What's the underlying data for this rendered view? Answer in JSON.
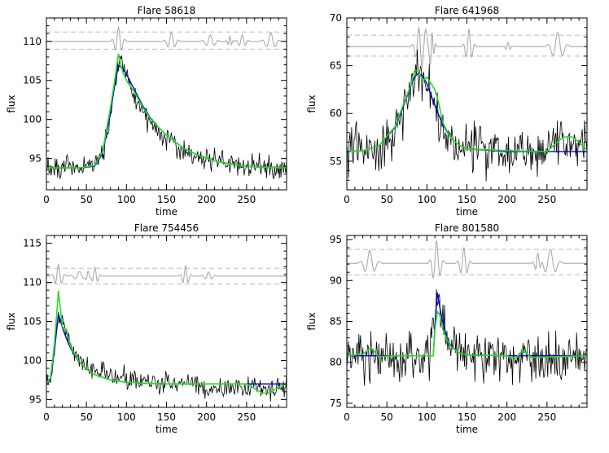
{
  "colors": {
    "data": "#000000",
    "model": "#0000cc",
    "fit": "#22dd22",
    "residual": "#aaaaaa",
    "band": "#bbbbbb"
  },
  "chart_data": [
    {
      "type": "line",
      "title": "Flare 58618",
      "xlabel": "time",
      "ylabel": "flux",
      "xlim": [
        0,
        300
      ],
      "ylim": [
        91,
        113
      ],
      "xticks": [
        0,
        50,
        100,
        150,
        200,
        250
      ],
      "yticks": [
        95,
        100,
        105,
        110
      ],
      "baseline": 93.8,
      "peak": 107.0,
      "peak_time": 90,
      "rise": 14,
      "decay": 40,
      "noise": 0.9,
      "residual_level": 110.0,
      "residual_band": [
        109.0,
        111.2
      ],
      "series": [
        {
          "role": "data",
          "x": [
            0,
            10,
            20,
            30,
            40,
            50,
            60,
            70,
            80,
            85,
            90,
            95,
            100,
            110,
            120,
            130,
            140,
            150,
            170,
            190,
            210,
            230,
            250,
            270,
            290,
            300
          ],
          "y": [
            93.8,
            93.9,
            94.0,
            93.7,
            93.8,
            94.0,
            94.2,
            95.5,
            100.5,
            104.0,
            106.8,
            107.2,
            105.5,
            103.0,
            101.0,
            99.5,
            98.5,
            97.5,
            96.0,
            95.2,
            94.7,
            94.2,
            94.0,
            93.9,
            93.8,
            93.8
          ]
        },
        {
          "role": "model",
          "x": [
            0,
            40,
            60,
            70,
            80,
            85,
            90,
            95,
            100,
            110,
            120,
            130,
            140,
            150,
            170,
            190,
            210,
            230,
            250,
            270,
            300
          ],
          "y": [
            93.8,
            93.8,
            94.0,
            95.6,
            100.8,
            104.2,
            106.9,
            106.6,
            105.8,
            103.8,
            101.8,
            100.2,
            99.0,
            98.0,
            96.4,
            95.4,
            94.7,
            94.3,
            94.0,
            93.9,
            93.8
          ]
        },
        {
          "role": "fit",
          "x": [
            0,
            40,
            60,
            70,
            80,
            85,
            90,
            95,
            100,
            110,
            120,
            130,
            140,
            150,
            170,
            190,
            210,
            230,
            250,
            270,
            300
          ],
          "y": [
            93.8,
            93.8,
            94.1,
            95.8,
            101.5,
            104.8,
            108.4,
            106.2,
            105.0,
            103.5,
            101.6,
            100.1,
            99.0,
            98.0,
            96.4,
            95.4,
            94.7,
            94.3,
            94.0,
            93.9,
            93.8
          ]
        }
      ]
    },
    {
      "type": "line",
      "title": "Flare 641968",
      "xlabel": "time",
      "ylabel": "flux",
      "xlim": [
        0,
        300
      ],
      "ylim": [
        52,
        70
      ],
      "xticks": [
        0,
        50,
        100,
        150,
        200,
        250
      ],
      "yticks": [
        55,
        60,
        65,
        70
      ],
      "baseline": 56.0,
      "peak": 64.2,
      "peak_time": 90,
      "rise": 18,
      "decay": 14,
      "noise": 1.5,
      "residual_level": 67.0,
      "residual_band": [
        66.0,
        68.2
      ],
      "series": [
        {
          "role": "data",
          "x": [
            0,
            20,
            40,
            60,
            70,
            80,
            85,
            90,
            95,
            100,
            110,
            120,
            130,
            150,
            180,
            210,
            240,
            260,
            280,
            300
          ],
          "y": [
            56.0,
            56.2,
            56.5,
            58.0,
            60.0,
            62.5,
            63.8,
            64.4,
            64.0,
            63.0,
            60.5,
            58.5,
            57.0,
            56.3,
            56.1,
            56.0,
            56.0,
            56.8,
            57.2,
            56.5
          ]
        },
        {
          "role": "model",
          "x": [
            0,
            20,
            40,
            60,
            70,
            80,
            85,
            90,
            95,
            100,
            110,
            120,
            130,
            140,
            150,
            200,
            250,
            300
          ],
          "y": [
            56.0,
            56.1,
            56.6,
            58.5,
            60.6,
            62.9,
            63.9,
            64.2,
            63.9,
            63.1,
            60.8,
            58.8,
            57.4,
            56.7,
            56.3,
            56.0,
            56.0,
            56.0
          ]
        },
        {
          "role": "fit",
          "x": [
            0,
            20,
            40,
            60,
            70,
            80,
            85,
            90,
            95,
            100,
            110,
            115,
            120,
            130,
            140,
            150,
            200,
            250,
            260,
            270,
            280,
            290,
            300
          ],
          "y": [
            56.0,
            56.1,
            56.6,
            58.6,
            60.8,
            63.0,
            64.6,
            64.3,
            63.4,
            63.8,
            62.5,
            61.0,
            59.0,
            57.4,
            56.7,
            56.3,
            56.1,
            56.0,
            56.8,
            57.5,
            57.6,
            57.0,
            56.2
          ]
        }
      ]
    },
    {
      "type": "line",
      "title": "Flare 754456",
      "xlabel": "time",
      "ylabel": "flux",
      "xlim": [
        0,
        300
      ],
      "ylim": [
        94,
        116
      ],
      "xticks": [
        0,
        50,
        100,
        150,
        200,
        250
      ],
      "yticks": [
        95,
        100,
        105,
        110,
        115
      ],
      "baseline": 97.0,
      "peak": 106.0,
      "peak_time": 15,
      "rise": 5,
      "decay": 15,
      "noise": 0.8,
      "residual_level": 110.8,
      "residual_band": [
        109.8,
        111.8
      ],
      "series": [
        {
          "role": "data",
          "x": [
            0,
            5,
            10,
            15,
            20,
            25,
            30,
            40,
            50,
            60,
            80,
            100,
            120,
            150,
            180,
            200,
            220,
            240,
            260,
            270,
            280,
            290,
            300
          ],
          "y": [
            97.0,
            97.5,
            101.0,
            105.8,
            105.0,
            103.5,
            102.0,
            100.5,
            99.5,
            98.8,
            98.2,
            97.8,
            97.4,
            97.1,
            97.0,
            96.5,
            96.2,
            96.8,
            96.8,
            96.0,
            96.2,
            96.8,
            97.0
          ]
        },
        {
          "role": "model",
          "x": [
            0,
            5,
            10,
            15,
            20,
            25,
            30,
            40,
            50,
            60,
            80,
            100,
            120,
            150,
            200,
            250,
            300
          ],
          "y": [
            97.0,
            97.5,
            101.2,
            106.0,
            104.2,
            102.8,
            101.6,
            99.9,
            98.9,
            98.2,
            97.5,
            97.2,
            97.1,
            97.0,
            97.0,
            97.0,
            97.0
          ]
        },
        {
          "role": "fit",
          "x": [
            0,
            5,
            10,
            15,
            20,
            25,
            30,
            40,
            50,
            60,
            80,
            100,
            120,
            150,
            200,
            250,
            260,
            270,
            280,
            290,
            300
          ],
          "y": [
            97.0,
            97.7,
            102.0,
            108.9,
            104.3,
            104.0,
            101.8,
            100.0,
            98.9,
            98.2,
            97.5,
            97.2,
            97.1,
            97.0,
            97.0,
            97.0,
            96.4,
            95.8,
            95.9,
            96.6,
            97.0
          ]
        }
      ]
    },
    {
      "type": "line",
      "title": "Flare 801580",
      "xlabel": "time",
      "ylabel": "flux",
      "xlim": [
        0,
        300
      ],
      "ylim": [
        74.5,
        95.5
      ],
      "xticks": [
        0,
        50,
        100,
        150,
        200,
        250
      ],
      "yticks": [
        75,
        80,
        85,
        90,
        95
      ],
      "baseline": 80.8,
      "peak": 88.5,
      "peak_time": 113,
      "rise": 2,
      "decay": 8,
      "noise": 1.8,
      "residual_level": 92.1,
      "residual_band": [
        90.7,
        93.8
      ],
      "series": [
        {
          "role": "data",
          "x": [
            0,
            30,
            60,
            90,
            105,
            110,
            113,
            118,
            125,
            135,
            150,
            180,
            210,
            240,
            270,
            300
          ],
          "y": [
            80.8,
            80.9,
            80.7,
            80.8,
            81.0,
            85.0,
            88.2,
            85.5,
            83.0,
            81.8,
            81.0,
            80.8,
            80.9,
            80.7,
            80.8,
            80.8
          ]
        },
        {
          "role": "model",
          "x": [
            0,
            100,
            108,
            110,
            113,
            116,
            120,
            125,
            130,
            140,
            150,
            200,
            300
          ],
          "y": [
            80.8,
            80.8,
            80.8,
            84.5,
            88.5,
            86.8,
            84.8,
            83.0,
            82.0,
            81.2,
            80.9,
            80.8,
            80.8
          ]
        },
        {
          "role": "fit",
          "x": [
            0,
            20,
            30,
            40,
            60,
            100,
            108,
            110,
            113,
            116,
            120,
            125,
            130,
            140,
            150,
            200,
            210,
            220,
            230,
            300
          ],
          "y": [
            80.8,
            81.0,
            81.8,
            80.7,
            80.8,
            80.8,
            80.8,
            84.0,
            86.2,
            85.8,
            84.0,
            82.8,
            81.9,
            81.2,
            80.9,
            80.8,
            80.4,
            81.5,
            80.6,
            80.8
          ]
        }
      ]
    }
  ]
}
